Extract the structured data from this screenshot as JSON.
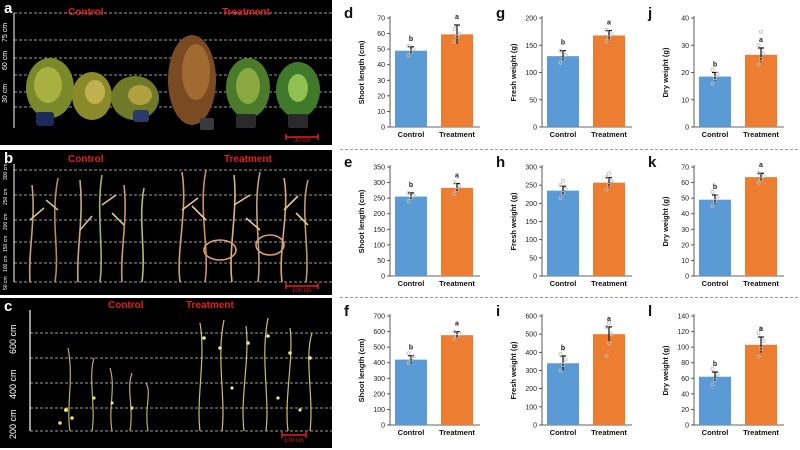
{
  "photos": [
    {
      "letter": "a",
      "control_label": "Control",
      "treatment_label": "Treatment",
      "height_labels": [
        "75 cm",
        "60 cm",
        "30 cm"
      ],
      "scale_label": "30 cm"
    },
    {
      "letter": "b",
      "control_label": "Control",
      "treatment_label": "Treatment",
      "height_labels": [
        "300 cm",
        "250 cm",
        "200 cm",
        "150 cm",
        "100 cm",
        "50 cm"
      ],
      "scale_label": "100 cm"
    },
    {
      "letter": "c",
      "control_label": "Control",
      "treatment_label": "Treatment",
      "height_labels": [
        "600 cm",
        "400 cm",
        "200 cm"
      ],
      "scale_label": "100 cm"
    }
  ],
  "colors": {
    "control_bar": "#5b9bd5",
    "treatment_bar": "#ed7d31",
    "photo_label": "#e02020"
  },
  "chart_data": [
    {
      "panel": "d",
      "type": "bar",
      "categories": [
        "Control",
        "Treatment"
      ],
      "values": [
        49,
        59.5
      ],
      "errors": [
        2.5,
        6
      ],
      "letters": [
        "b",
        "a"
      ],
      "ylabel": "Shoot length (cm)",
      "ylim": [
        0,
        70
      ],
      "yticks": [
        0,
        10,
        20,
        30,
        40,
        50,
        60,
        70
      ],
      "points": [
        [
          46,
          48,
          50,
          52
        ],
        [
          55,
          58,
          60,
          63
        ]
      ]
    },
    {
      "panel": "g",
      "type": "bar",
      "categories": [
        "Control",
        "Treatment"
      ],
      "values": [
        130,
        168
      ],
      "errors": [
        10,
        9
      ],
      "letters": [
        "b",
        "a"
      ],
      "ylabel": "Fresh weight (g)",
      "ylim": [
        0,
        200
      ],
      "yticks": [
        0,
        50,
        100,
        150,
        200
      ],
      "points": [
        [
          118,
          124,
          132,
          140
        ],
        [
          158,
          164,
          170,
          178
        ]
      ]
    },
    {
      "panel": "j",
      "type": "bar",
      "categories": [
        "Control",
        "Treatment"
      ],
      "values": [
        18.5,
        26.5
      ],
      "errors": [
        1.5,
        2.5
      ],
      "letters": [
        "b",
        "a"
      ],
      "ylabel": "Dry weight (g)",
      "ylim": [
        0,
        40
      ],
      "yticks": [
        0,
        10,
        20,
        30,
        40
      ],
      "points": [
        [
          16,
          18,
          19.5,
          21
        ],
        [
          23,
          25,
          27,
          30,
          35
        ]
      ]
    },
    {
      "panel": "e",
      "type": "bar",
      "categories": [
        "Control",
        "Treatment"
      ],
      "values": [
        255,
        283
      ],
      "errors": [
        12,
        14
      ],
      "letters": [
        "b",
        "a"
      ],
      "ylabel": "Shoot length (cm)",
      "ylim": [
        0,
        350
      ],
      "yticks": [
        0,
        50,
        100,
        150,
        200,
        250,
        300,
        350
      ],
      "points": [
        [
          240,
          250,
          258,
          266
        ],
        [
          265,
          276,
          288,
          300
        ]
      ]
    },
    {
      "panel": "h",
      "type": "bar",
      "categories": [
        "Control",
        "Treatment"
      ],
      "values": [
        235,
        257
      ],
      "errors": [
        12,
        14
      ],
      "letters": [
        "",
        ""
      ],
      "ylabel": "Fresh weight (g)",
      "ylim": [
        0,
        300
      ],
      "yticks": [
        0,
        50,
        100,
        150,
        200,
        250,
        300
      ],
      "points": [
        [
          215,
          228,
          240,
          250,
          262
        ],
        [
          238,
          250,
          262,
          272,
          282
        ]
      ]
    },
    {
      "panel": "k",
      "type": "bar",
      "categories": [
        "Control",
        "Treatment"
      ],
      "values": [
        49,
        63.5
      ],
      "errors": [
        3,
        2.5
      ],
      "letters": [
        "b",
        "a"
      ],
      "ylabel": "Dry weight (g)",
      "ylim": [
        0,
        70
      ],
      "yticks": [
        0,
        10,
        20,
        30,
        40,
        50,
        60,
        70
      ],
      "points": [
        [
          45,
          48,
          51,
          54
        ],
        [
          60,
          62,
          64,
          66
        ]
      ]
    },
    {
      "panel": "f",
      "type": "bar",
      "categories": [
        "Control",
        "Treatment"
      ],
      "values": [
        420,
        577
      ],
      "errors": [
        25,
        22
      ],
      "letters": [
        "b",
        "a"
      ],
      "ylabel": "Shoot length (cm)",
      "ylim": [
        0,
        700
      ],
      "yticks": [
        0,
        100,
        200,
        300,
        400,
        500,
        600,
        700
      ],
      "points": [
        [
          400,
          420,
          440,
          460
        ],
        [
          555,
          570,
          585,
          600
        ]
      ]
    },
    {
      "panel": "i",
      "type": "bar",
      "categories": [
        "Control",
        "Treatment"
      ],
      "values": [
        340,
        500
      ],
      "errors": [
        40,
        40
      ],
      "letters": [
        "b",
        "a"
      ],
      "ylabel": "Fresh weight (g)",
      "ylim": [
        0,
        600
      ],
      "yticks": [
        0,
        100,
        200,
        300,
        400,
        500,
        600
      ],
      "points": [
        [
          300,
          330,
          360,
          390,
          420
        ],
        [
          380,
          450,
          500,
          540,
          560
        ]
      ]
    },
    {
      "panel": "l",
      "type": "bar",
      "categories": [
        "Control",
        "Treatment"
      ],
      "values": [
        62,
        103
      ],
      "errors": [
        6,
        10
      ],
      "letters": [
        "b",
        "a"
      ],
      "ylabel": "Dry weight (g)",
      "ylim": [
        0,
        140
      ],
      "yticks": [
        0,
        20,
        40,
        60,
        80,
        100,
        120,
        140
      ],
      "points": [
        [
          52,
          58,
          65,
          72
        ],
        [
          88,
          98,
          108,
          118,
          124
        ]
      ]
    }
  ]
}
